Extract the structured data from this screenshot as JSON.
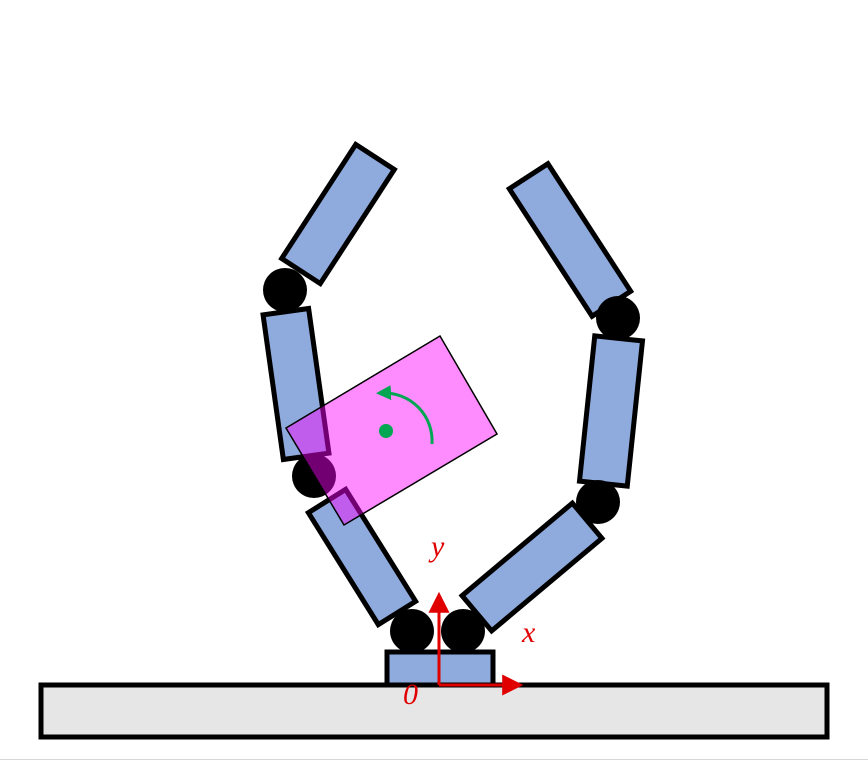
{
  "axes": {
    "origin_label": "0",
    "x_label": "x",
    "y_label": "y"
  },
  "colors": {
    "link_fill": "#8faadc",
    "outline": "#000000",
    "joint": "#000000",
    "ground_fill": "#e7e6e6",
    "object_fill": "#ff00ff",
    "object_opacity": 0.45,
    "center_marker": "#00a651",
    "rotation_arrow": "#00a651",
    "axis_color": "#e00000"
  },
  "icons": {
    "joint": "filled-circle",
    "rotation": "counterclockwise-arc-arrow",
    "object_center": "dot"
  }
}
